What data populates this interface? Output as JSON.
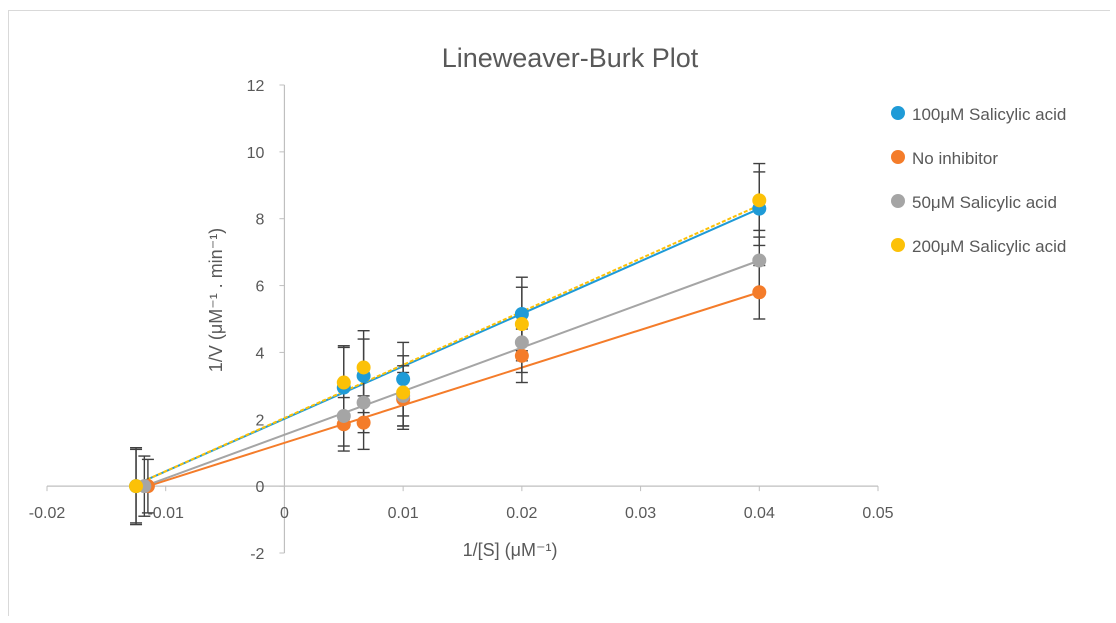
{
  "chart_data": {
    "type": "scatter",
    "title": "Lineweaver-Burk Plot",
    "xlabel": "1/[S] (μM⁻¹)",
    "ylabel": "1/V (μM⁻¹ . min⁻¹)",
    "xlim": [
      -0.02,
      0.05
    ],
    "ylim": [
      -2,
      12
    ],
    "x_ticks": [
      "-0.02",
      "-0.01",
      "0",
      "0.01",
      "0.02",
      "0.03",
      "0.04",
      "0.05"
    ],
    "y_ticks": [
      "-2",
      "0",
      "2",
      "4",
      "6",
      "8",
      "10",
      "12"
    ],
    "grid": false,
    "legend_position": "right",
    "series": [
      {
        "name": "100μM Salicylic acid",
        "color": "#1f9bd7",
        "points": [
          {
            "x": -0.0125,
            "y": 0,
            "err": 1.1
          },
          {
            "x": 0.005,
            "y": 2.95,
            "err": 1.2
          },
          {
            "x": 0.00667,
            "y": 3.3,
            "err": 1.1
          },
          {
            "x": 0.01,
            "y": 3.2,
            "err": 1.1
          },
          {
            "x": 0.02,
            "y": 5.15,
            "err": 1.1
          },
          {
            "x": 0.04,
            "y": 8.3,
            "err": 1.1
          }
        ],
        "trend": {
          "x0": -0.0125,
          "y0": 0.05,
          "x1": 0.04,
          "y1": 8.3
        }
      },
      {
        "name": "No inhibitor",
        "color": "#f47c2a",
        "points": [
          {
            "x": -0.0115,
            "y": 0,
            "err": 0.8
          },
          {
            "x": 0.005,
            "y": 1.85,
            "err": 0.8
          },
          {
            "x": 0.00667,
            "y": 1.9,
            "err": 0.8
          },
          {
            "x": 0.01,
            "y": 2.6,
            "err": 0.8
          },
          {
            "x": 0.02,
            "y": 3.9,
            "err": 0.8
          },
          {
            "x": 0.04,
            "y": 5.8,
            "err": 0.8
          }
        ],
        "trend": {
          "x0": -0.0115,
          "y0": 0.0,
          "x1": 0.04,
          "y1": 5.8
        }
      },
      {
        "name": "50μM Salicylic acid",
        "color": "#a5a5a5",
        "points": [
          {
            "x": -0.0118,
            "y": 0,
            "err": 0.9
          },
          {
            "x": 0.005,
            "y": 2.1,
            "err": 0.9
          },
          {
            "x": 0.00667,
            "y": 2.5,
            "err": 0.9
          },
          {
            "x": 0.01,
            "y": 2.7,
            "err": 0.9
          },
          {
            "x": 0.02,
            "y": 4.3,
            "err": 0.9
          },
          {
            "x": 0.04,
            "y": 6.75,
            "err": 0.9
          }
        ],
        "trend": {
          "x0": -0.0118,
          "y0": 0.0,
          "x1": 0.04,
          "y1": 6.75
        }
      },
      {
        "name": "200μM Salicylic acid",
        "color": "#fcc107",
        "points": [
          {
            "x": -0.0125,
            "y": 0,
            "err": 1.15
          },
          {
            "x": 0.005,
            "y": 3.1,
            "err": 1.1
          },
          {
            "x": 0.00667,
            "y": 3.55,
            "err": 1.1
          },
          {
            "x": 0.01,
            "y": 2.8,
            "err": 1.1
          },
          {
            "x": 0.02,
            "y": 4.85,
            "err": 1.1
          },
          {
            "x": 0.04,
            "y": 8.55,
            "err": 1.1
          }
        ],
        "trend": {
          "x0": -0.0125,
          "y0": 0.05,
          "x1": 0.04,
          "y1": 8.4
        }
      }
    ]
  }
}
